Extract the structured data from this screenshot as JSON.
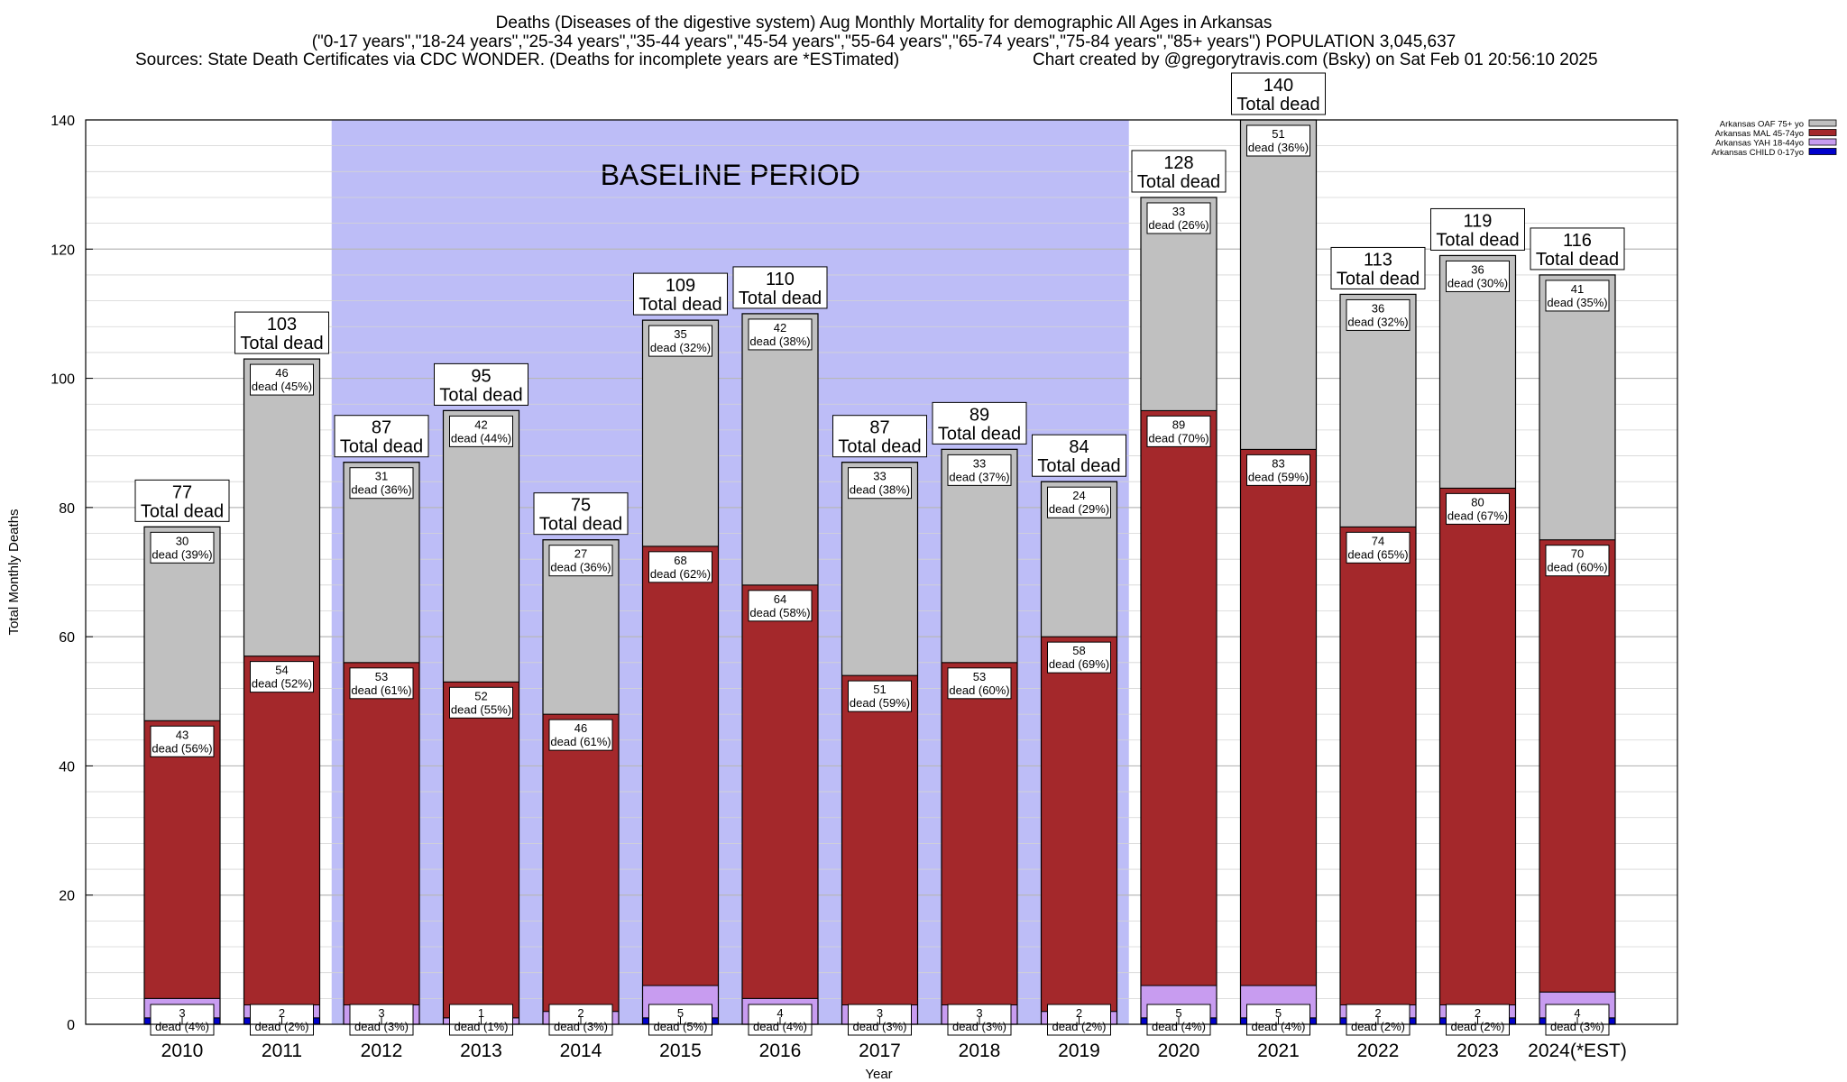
{
  "title_lines": [
    "Deaths (Diseases of the digestive system) Aug Monthly Mortality for demographic All Ages in Arkansas",
    "(\"0-17 years\",\"18-24 years\",\"25-34 years\",\"35-44 years\",\"45-54 years\",\"55-64 years\",\"65-74 years\",\"75-84 years\",\"85+ years\") POPULATION 3,045,637"
  ],
  "source_text": "Sources: State Death Certificates via CDC WONDER. (Deaths for incomplete years are *ESTimated)",
  "credit_text": "Chart created by @gregorytravis.com (Bsky) on Sat Feb 01 20:56:10 2025",
  "baseline_label": "BASELINE PERIOD",
  "total_suffix": "Total dead",
  "dead_word": "dead",
  "chart_data": {
    "type": "bar",
    "stacked": true,
    "xlabel": "Year",
    "ylabel": "Total Monthly Deaths",
    "ylim": [
      0,
      140
    ],
    "yticks": [
      0,
      20,
      40,
      60,
      80,
      100,
      120,
      140
    ],
    "grid": true,
    "legend_position": "top-right",
    "baseline_period": [
      "2012",
      "2019"
    ],
    "categories": [
      "2010",
      "2011",
      "2012",
      "2013",
      "2014",
      "2015",
      "2016",
      "2017",
      "2018",
      "2019",
      "2020",
      "2021",
      "2022",
      "2023",
      "2024(*EST)"
    ],
    "totals": [
      77,
      103,
      87,
      95,
      75,
      109,
      110,
      87,
      89,
      84,
      128,
      140,
      113,
      119,
      116
    ],
    "series": [
      {
        "name": "Arkansas CHILD 0-17yo",
        "color": "#0000cc",
        "values": [
          1,
          1,
          0,
          0,
          0,
          1,
          0,
          0,
          0,
          0,
          1,
          1,
          1,
          1,
          1
        ]
      },
      {
        "name": "Arkansas YAH 18-44yo",
        "color": "#c89cf0",
        "values": [
          3,
          2,
          3,
          1,
          2,
          5,
          4,
          3,
          3,
          2,
          5,
          5,
          2,
          2,
          4
        ],
        "labels": [
          "3",
          "2",
          "3",
          "1",
          "2",
          "5",
          "4",
          "3",
          "3",
          "2",
          "5",
          "5",
          "2",
          "2",
          "4"
        ],
        "pct": [
          "4%",
          "2%",
          "3%",
          "1%",
          "3%",
          "5%",
          "4%",
          "3%",
          "3%",
          "2%",
          "4%",
          "4%",
          "2%",
          "2%",
          "3%"
        ]
      },
      {
        "name": "Arkansas MAL 45-74yo",
        "color": "#a4282b",
        "values": [
          43,
          54,
          53,
          52,
          46,
          68,
          64,
          51,
          53,
          58,
          89,
          83,
          74,
          80,
          70
        ],
        "labels": [
          "43",
          "54",
          "53",
          "52",
          "46",
          "68",
          "64",
          "51",
          "53",
          "58",
          "89",
          "83",
          "74",
          "80",
          "70"
        ],
        "pct": [
          "56%",
          "52%",
          "61%",
          "55%",
          "61%",
          "62%",
          "58%",
          "59%",
          "60%",
          "69%",
          "70%",
          "59%",
          "65%",
          "67%",
          "60%"
        ]
      },
      {
        "name": "Arkansas OAF 75+ yo",
        "color": "#c0c0c0",
        "values": [
          30,
          46,
          31,
          42,
          27,
          35,
          42,
          33,
          33,
          24,
          33,
          51,
          36,
          36,
          41
        ],
        "labels": [
          "30",
          "46",
          "31",
          "42",
          "27",
          "35",
          "42",
          "33",
          "33",
          "24",
          "33",
          "51",
          "36",
          "36",
          "41"
        ],
        "pct": [
          "39%",
          "45%",
          "36%",
          "44%",
          "36%",
          "32%",
          "38%",
          "38%",
          "37%",
          "29%",
          "26%",
          "36%",
          "32%",
          "30%",
          "35%"
        ]
      }
    ],
    "legend_order": [
      "Arkansas OAF 75+ yo",
      "Arkansas MAL 45-74yo",
      "Arkansas YAH 18-44yo",
      "Arkansas CHILD 0-17yo"
    ]
  }
}
